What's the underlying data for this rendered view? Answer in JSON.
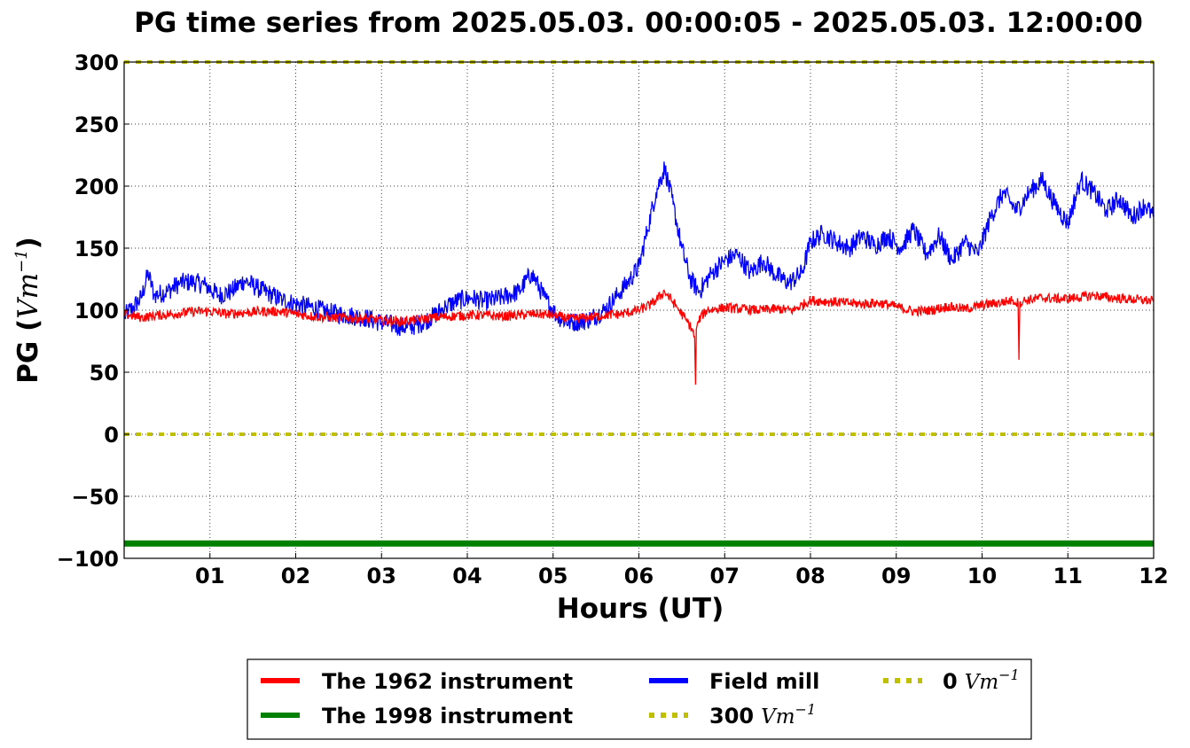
{
  "chart_data": {
    "type": "line",
    "title": "PG time series from 2025.05.03. 00:00:05 - 2025.05.03. 12:00:00",
    "xlabel": "Hours (UT)",
    "ylabel": "PG (",
    "ylabel_unit": "Vm",
    "ylabel_exp": "−1",
    "ylabel_close": ")",
    "xlim": [
      0,
      12
    ],
    "ylim": [
      -100,
      300
    ],
    "x_ticks": [
      1,
      2,
      3,
      4,
      5,
      6,
      7,
      8,
      9,
      10,
      11,
      12
    ],
    "x_tick_labels": [
      "01",
      "02",
      "03",
      "04",
      "05",
      "06",
      "07",
      "08",
      "09",
      "10",
      "11",
      "12"
    ],
    "y_ticks": [
      -100,
      -50,
      0,
      50,
      100,
      150,
      200,
      250,
      300
    ],
    "y_tick_labels": [
      "−100",
      "−50",
      "0",
      "50",
      "100",
      "150",
      "200",
      "250",
      "300"
    ],
    "grid": true,
    "legend_position": "bottom (outside plot)",
    "series": [
      {
        "name": "Field mill",
        "color": "#0000ff",
        "style": "solid",
        "x": [
          0,
          0.1,
          0.2,
          0.28,
          0.35,
          0.5,
          0.65,
          0.8,
          0.95,
          1.1,
          1.25,
          1.4,
          1.55,
          1.7,
          1.85,
          2.0,
          2.2,
          2.4,
          2.6,
          2.8,
          3.0,
          3.15,
          3.3,
          3.45,
          3.6,
          3.75,
          3.9,
          4.05,
          4.2,
          4.4,
          4.6,
          4.75,
          4.9,
          5.05,
          5.2,
          5.4,
          5.6,
          5.75,
          5.9,
          6.0,
          6.1,
          6.2,
          6.3,
          6.4,
          6.5,
          6.6,
          6.7,
          6.85,
          7.0,
          7.15,
          7.3,
          7.45,
          7.6,
          7.75,
          7.9,
          8.0,
          8.15,
          8.3,
          8.45,
          8.6,
          8.75,
          8.9,
          9.05,
          9.2,
          9.35,
          9.5,
          9.65,
          9.8,
          9.95,
          10.1,
          10.25,
          10.4,
          10.55,
          10.7,
          10.85,
          11.0,
          11.15,
          11.3,
          11.45,
          11.6,
          11.75,
          11.9,
          12.0
        ],
        "y": [
          95,
          102,
          110,
          130,
          112,
          115,
          122,
          123,
          120,
          112,
          115,
          124,
          118,
          113,
          108,
          105,
          102,
          98,
          96,
          94,
          90,
          88,
          86,
          89,
          95,
          103,
          108,
          110,
          107,
          110,
          115,
          130,
          110,
          95,
          90,
          92,
          100,
          112,
          125,
          135,
          165,
          195,
          215,
          185,
          150,
          125,
          115,
          130,
          140,
          145,
          130,
          140,
          128,
          122,
          130,
          155,
          162,
          155,
          150,
          160,
          152,
          160,
          150,
          165,
          145,
          160,
          140,
          155,
          145,
          175,
          195,
          180,
          195,
          205,
          185,
          170,
          205,
          195,
          180,
          190,
          175,
          185,
          175
        ],
        "legend_label": "Field mill"
      },
      {
        "name": "The 1962 instrument",
        "color": "#ff0000",
        "style": "solid",
        "x": [
          0,
          0.2,
          0.4,
          0.6,
          0.8,
          1.0,
          1.2,
          1.4,
          1.6,
          1.8,
          2.0,
          2.2,
          2.4,
          2.6,
          2.8,
          3.0,
          3.2,
          3.4,
          3.6,
          3.8,
          4.0,
          4.2,
          4.4,
          4.6,
          4.8,
          5.0,
          5.2,
          5.4,
          5.6,
          5.8,
          6.0,
          6.15,
          6.3,
          6.45,
          6.55,
          6.62,
          6.65,
          6.66,
          6.67,
          6.72,
          6.8,
          7.0,
          7.2,
          7.4,
          7.6,
          7.8,
          8.0,
          8.2,
          8.4,
          8.6,
          8.8,
          9.0,
          9.2,
          9.4,
          9.6,
          9.8,
          10.0,
          10.2,
          10.35,
          10.42,
          10.43,
          10.44,
          10.5,
          10.7,
          10.9,
          11.1,
          11.3,
          11.5,
          11.7,
          11.9,
          12.0
        ],
        "y": [
          97,
          94,
          96,
          97,
          99,
          99,
          97,
          98,
          99,
          99,
          97,
          95,
          94,
          94,
          93,
          92,
          91,
          92,
          94,
          95,
          96,
          96,
          95,
          96,
          97,
          96,
          93,
          94,
          96,
          97,
          100,
          105,
          115,
          102,
          92,
          85,
          78,
          40,
          85,
          95,
          100,
          102,
          101,
          100,
          101,
          100,
          108,
          107,
          106,
          105,
          106,
          103,
          99,
          100,
          103,
          101,
          104,
          106,
          108,
          106,
          60,
          106,
          108,
          110,
          109,
          110,
          112,
          110,
          109,
          108,
          107
        ],
        "legend_label": "The 1962 instrument"
      },
      {
        "name": "The 1998 instrument",
        "color": "#008000",
        "style": "solid-thick",
        "x": [
          0,
          12
        ],
        "y": [
          -88,
          -88
        ],
        "legend_label": "The 1998 instrument"
      },
      {
        "name": "300 Vm−1",
        "color": "#bfbf00",
        "style": "dotted",
        "x": [
          0,
          12
        ],
        "y": [
          300,
          300
        ],
        "legend_label": "300",
        "legend_unit": "Vm",
        "legend_exp": "−1"
      },
      {
        "name": "0 Vm−1",
        "color": "#bfbf00",
        "style": "dotted",
        "x": [
          0,
          12
        ],
        "y": [
          0,
          0
        ],
        "legend_label": "0",
        "legend_unit": "Vm",
        "legend_exp": "−1"
      }
    ]
  }
}
